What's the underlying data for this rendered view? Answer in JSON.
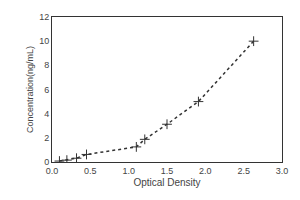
{
  "chart_data": {
    "type": "line",
    "x": [
      0.097,
      0.194,
      0.32,
      0.45,
      1.1,
      1.21,
      1.5,
      1.91,
      2.63
    ],
    "values": [
      0.078,
      0.156,
      0.313,
      0.625,
      1.25,
      1.875,
      3.125,
      5.0,
      10.0
    ],
    "xlabel": "Optical Density",
    "ylabel": "Concentration(ng/mL)",
    "xlim": [
      0,
      3
    ],
    "ylim": [
      0,
      12
    ],
    "xticks": [
      {
        "value": 0,
        "label": "0.0"
      },
      0.5,
      {
        "value": 1,
        "label": "1.0"
      },
      1.5,
      {
        "value": 2,
        "label": "2.0"
      },
      2.5,
      {
        "value": 3,
        "label": "3.0"
      }
    ],
    "yticks": [
      0,
      2,
      4,
      6,
      8,
      10,
      12
    ],
    "color": "#333333",
    "marker": "plus",
    "line_style": "dotted",
    "grid": false
  }
}
